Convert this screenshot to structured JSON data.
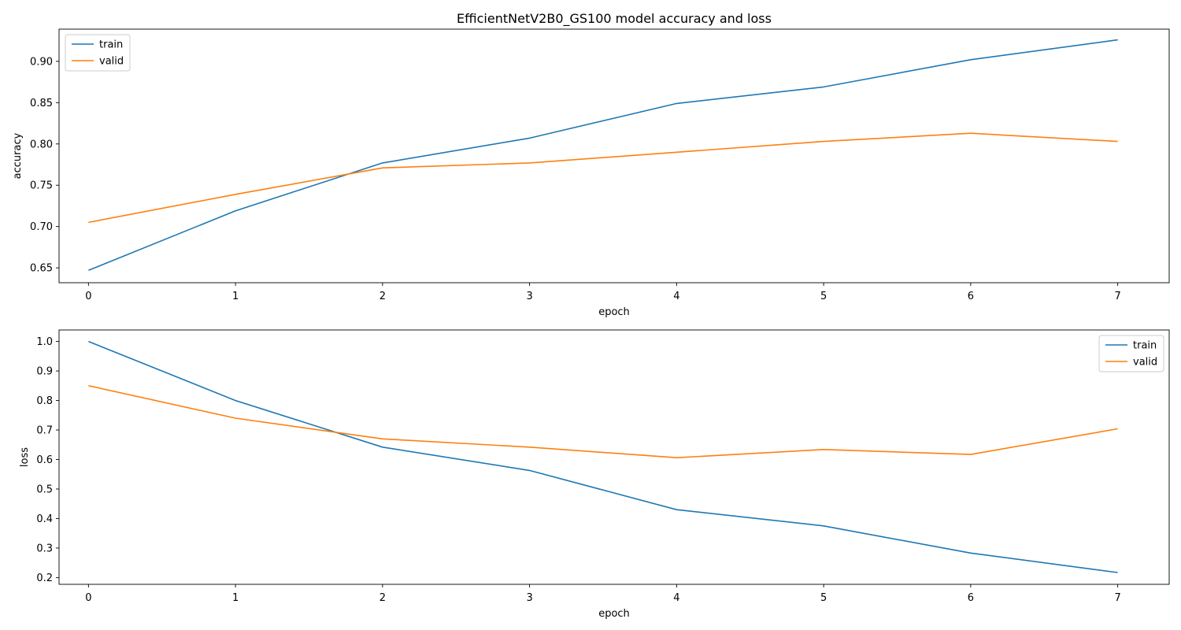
{
  "chart_data": [
    {
      "type": "line",
      "title": "EfficientNetV2B0_GS100 model accuracy and loss",
      "xlabel": "epoch",
      "ylabel": "accuracy",
      "x": [
        0,
        1,
        2,
        3,
        4,
        5,
        6,
        7
      ],
      "xticks": [
        0,
        1,
        2,
        3,
        4,
        5,
        6,
        7
      ],
      "xlim": [
        -0.2,
        7.35
      ],
      "yticks": [
        0.65,
        0.7,
        0.75,
        0.8,
        0.85,
        0.9
      ],
      "ytick_labels": [
        "0.65",
        "0.70",
        "0.75",
        "0.80",
        "0.85",
        "0.90"
      ],
      "ylim": [
        0.632,
        0.939
      ],
      "legend_position": "upper-left",
      "series": [
        {
          "name": "train",
          "color": "#1f77b4",
          "values": [
            0.647,
            0.719,
            0.777,
            0.807,
            0.849,
            0.869,
            0.902,
            0.926
          ]
        },
        {
          "name": "valid",
          "color": "#ff7f0e",
          "values": [
            0.705,
            0.739,
            0.771,
            0.777,
            0.79,
            0.803,
            0.813,
            0.803
          ]
        }
      ]
    },
    {
      "type": "line",
      "title": "",
      "xlabel": "epoch",
      "ylabel": "loss",
      "x": [
        0,
        1,
        2,
        3,
        4,
        5,
        6,
        7
      ],
      "xticks": [
        0,
        1,
        2,
        3,
        4,
        5,
        6,
        7
      ],
      "xlim": [
        -0.2,
        7.35
      ],
      "yticks": [
        0.2,
        0.3,
        0.4,
        0.5,
        0.6,
        0.7,
        0.8,
        0.9,
        1.0
      ],
      "ytick_labels": [
        "0.2",
        "0.3",
        "0.4",
        "0.5",
        "0.6",
        "0.7",
        "0.8",
        "0.9",
        "1.0"
      ],
      "ylim": [
        0.177,
        1.039
      ],
      "legend_position": "upper-right",
      "series": [
        {
          "name": "train",
          "color": "#1f77b4",
          "values": [
            1.0,
            0.8,
            0.642,
            0.563,
            0.43,
            0.375,
            0.283,
            0.217
          ]
        },
        {
          "name": "valid",
          "color": "#ff7f0e",
          "values": [
            0.85,
            0.74,
            0.67,
            0.642,
            0.606,
            0.634,
            0.617,
            0.704
          ]
        }
      ]
    }
  ]
}
